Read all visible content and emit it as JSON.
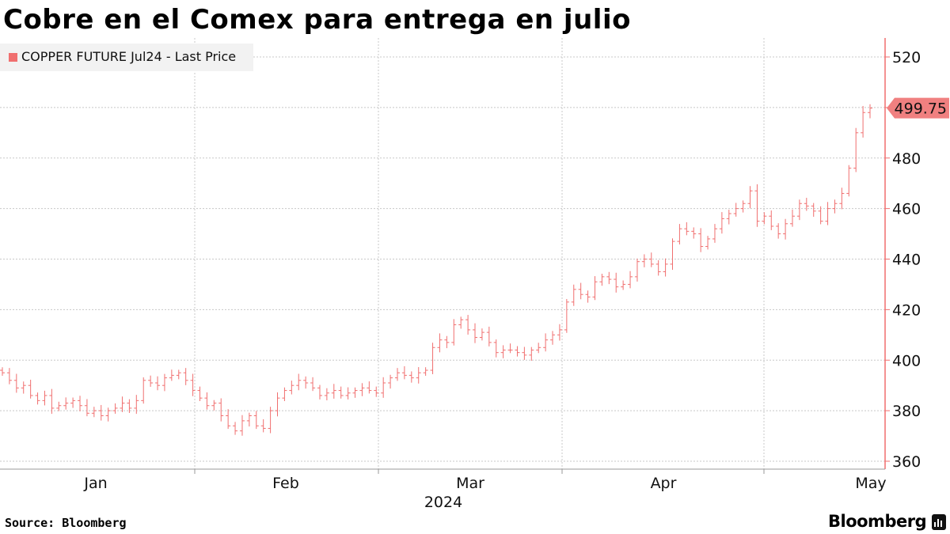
{
  "title": "Cobre en el Comex para entrega en julio",
  "legend": {
    "label": "COPPER FUTURE Jul24 - Last Price",
    "color": "#f06f6f"
  },
  "source": "Source: Bloomberg",
  "brand": "Bloomberg",
  "colors": {
    "line": "#f06f6f",
    "grid": "#c8c8c8",
    "last_tag": "#f08080"
  },
  "chart_data": {
    "type": "line",
    "style": "OHLC bars (open/close ticks, high-low range)",
    "series": [
      {
        "name": "COPPER FUTURE Jul24 - Last Price",
        "values": [
          395,
          392,
          389,
          390,
          386,
          384,
          386,
          381,
          382,
          383,
          384,
          382,
          379,
          380,
          378,
          380,
          381,
          383,
          381,
          384,
          392,
          391,
          390,
          393,
          394,
          395,
          392,
          388,
          385,
          382,
          383,
          378,
          374,
          372,
          376,
          378,
          374,
          373,
          380,
          385,
          388,
          390,
          392,
          391,
          389,
          386,
          387,
          388,
          386,
          387,
          388,
          389,
          388,
          387,
          391,
          393,
          395,
          394,
          393,
          395,
          396,
          405,
          408,
          407,
          414,
          416,
          412,
          409,
          411,
          407,
          403,
          404,
          404,
          403,
          402,
          404,
          405,
          408,
          410,
          412,
          423,
          428,
          426,
          425,
          431,
          433,
          432,
          429,
          430,
          433,
          439,
          440,
          438,
          435,
          438,
          447,
          452,
          451,
          450,
          445,
          448,
          452,
          456,
          458,
          460,
          462,
          467,
          455,
          457,
          453,
          450,
          454,
          457,
          462,
          461,
          459,
          455,
          460,
          462,
          466,
          476,
          490,
          498,
          499.75
        ]
      }
    ],
    "x_axis": {
      "month_labels": [
        "Jan",
        "Feb",
        "Mar",
        "Apr",
        "May"
      ],
      "year_label": "2024"
    },
    "y_axis": {
      "ticks": [
        360,
        380,
        400,
        420,
        440,
        460,
        480,
        500,
        520
      ],
      "ylim": [
        356,
        527
      ],
      "position": "right"
    },
    "last_value": "499.75",
    "grid": true,
    "legend_position": "top-left"
  }
}
